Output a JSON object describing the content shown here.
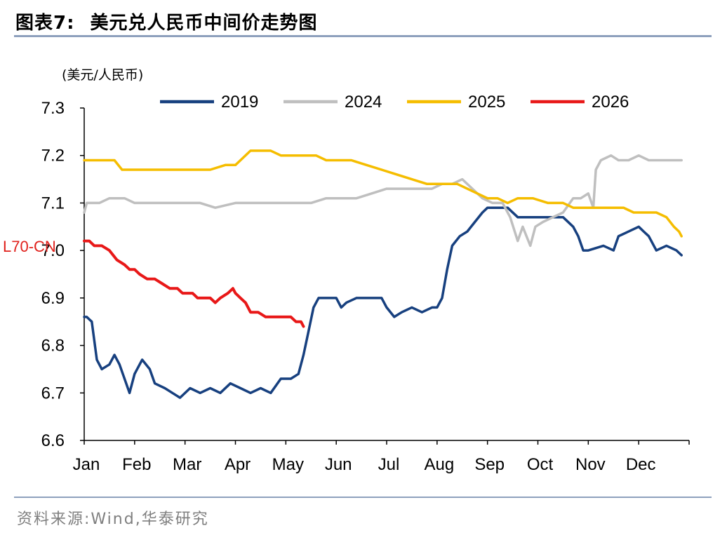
{
  "header": {
    "figure_label": "图表7:",
    "title": "美元兑人民币中间价走势图"
  },
  "footer": {
    "source": "资料来源:Wind,华泰研究"
  },
  "chart_data": {
    "type": "line",
    "unit_label": "(美元/人民币)",
    "annotation": "L70-CN",
    "ylim": [
      6.6,
      7.3
    ],
    "y_ticks": [
      "7.3",
      "7.2",
      "7.1",
      "7.0",
      "6.9",
      "6.8",
      "6.7",
      "6.6"
    ],
    "x_ticks": [
      "Jan",
      "Feb",
      "Mar",
      "Apr",
      "May",
      "Jun",
      "Jul",
      "Aug",
      "Sep",
      "Oct",
      "Nov",
      "Dec"
    ],
    "legend_position": "top",
    "series": [
      {
        "name": "2019",
        "color": "#17407f",
        "points": [
          [
            1.0,
            6.86
          ],
          [
            1.05,
            6.86
          ],
          [
            1.15,
            6.85
          ],
          [
            1.25,
            6.77
          ],
          [
            1.35,
            6.75
          ],
          [
            1.5,
            6.76
          ],
          [
            1.6,
            6.78
          ],
          [
            1.7,
            6.76
          ],
          [
            1.9,
            6.7
          ],
          [
            2.0,
            6.74
          ],
          [
            2.15,
            6.77
          ],
          [
            2.3,
            6.75
          ],
          [
            2.4,
            6.72
          ],
          [
            2.6,
            6.71
          ],
          [
            2.75,
            6.7
          ],
          [
            2.9,
            6.69
          ],
          [
            3.1,
            6.71
          ],
          [
            3.3,
            6.7
          ],
          [
            3.5,
            6.71
          ],
          [
            3.7,
            6.7
          ],
          [
            3.9,
            6.72
          ],
          [
            4.1,
            6.71
          ],
          [
            4.3,
            6.7
          ],
          [
            4.5,
            6.71
          ],
          [
            4.7,
            6.7
          ],
          [
            4.9,
            6.73
          ],
          [
            5.1,
            6.73
          ],
          [
            5.25,
            6.74
          ],
          [
            5.35,
            6.78
          ],
          [
            5.45,
            6.83
          ],
          [
            5.55,
            6.88
          ],
          [
            5.65,
            6.9
          ],
          [
            6.0,
            6.9
          ],
          [
            6.1,
            6.88
          ],
          [
            6.2,
            6.89
          ],
          [
            6.4,
            6.9
          ],
          [
            6.9,
            6.9
          ],
          [
            7.0,
            6.88
          ],
          [
            7.15,
            6.86
          ],
          [
            7.3,
            6.87
          ],
          [
            7.5,
            6.88
          ],
          [
            7.7,
            6.87
          ],
          [
            7.9,
            6.88
          ],
          [
            8.0,
            6.88
          ],
          [
            8.1,
            6.9
          ],
          [
            8.2,
            6.96
          ],
          [
            8.3,
            7.01
          ],
          [
            8.45,
            7.03
          ],
          [
            8.6,
            7.04
          ],
          [
            8.75,
            7.06
          ],
          [
            8.9,
            7.08
          ],
          [
            9.0,
            7.09
          ],
          [
            9.2,
            7.09
          ],
          [
            9.4,
            7.09
          ],
          [
            9.6,
            7.07
          ],
          [
            9.8,
            7.07
          ],
          [
            10.0,
            7.07
          ],
          [
            10.3,
            7.07
          ],
          [
            10.5,
            7.07
          ],
          [
            10.7,
            7.05
          ],
          [
            10.8,
            7.03
          ],
          [
            10.9,
            7.0
          ],
          [
            11.0,
            7.0
          ],
          [
            11.3,
            7.01
          ],
          [
            11.5,
            7.0
          ],
          [
            11.6,
            7.03
          ],
          [
            11.8,
            7.04
          ],
          [
            12.0,
            7.05
          ],
          [
            12.1,
            7.04
          ],
          [
            12.2,
            7.03
          ],
          [
            12.35,
            7.0
          ],
          [
            12.55,
            7.01
          ],
          [
            12.75,
            7.0
          ],
          [
            12.85,
            6.99
          ]
        ]
      },
      {
        "name": "2024",
        "color": "#bfbfbf",
        "points": [
          [
            1.0,
            7.08
          ],
          [
            1.05,
            7.1
          ],
          [
            1.3,
            7.1
          ],
          [
            1.5,
            7.11
          ],
          [
            1.8,
            7.11
          ],
          [
            2.0,
            7.1
          ],
          [
            2.3,
            7.1
          ],
          [
            2.7,
            7.1
          ],
          [
            3.0,
            7.1
          ],
          [
            3.3,
            7.1
          ],
          [
            3.6,
            7.09
          ],
          [
            4.0,
            7.1
          ],
          [
            4.3,
            7.1
          ],
          [
            4.6,
            7.1
          ],
          [
            4.9,
            7.1
          ],
          [
            5.1,
            7.1
          ],
          [
            5.5,
            7.1
          ],
          [
            5.8,
            7.11
          ],
          [
            6.1,
            7.11
          ],
          [
            6.4,
            7.11
          ],
          [
            6.7,
            7.12
          ],
          [
            7.0,
            7.13
          ],
          [
            7.3,
            7.13
          ],
          [
            7.6,
            7.13
          ],
          [
            7.9,
            7.13
          ],
          [
            8.1,
            7.14
          ],
          [
            8.3,
            7.14
          ],
          [
            8.5,
            7.15
          ],
          [
            8.7,
            7.13
          ],
          [
            8.9,
            7.11
          ],
          [
            9.1,
            7.1
          ],
          [
            9.3,
            7.1
          ],
          [
            9.45,
            7.07
          ],
          [
            9.6,
            7.02
          ],
          [
            9.7,
            7.05
          ],
          [
            9.85,
            7.01
          ],
          [
            9.95,
            7.05
          ],
          [
            10.1,
            7.06
          ],
          [
            10.3,
            7.07
          ],
          [
            10.5,
            7.08
          ],
          [
            10.7,
            7.11
          ],
          [
            10.85,
            7.11
          ],
          [
            11.0,
            7.12
          ],
          [
            11.1,
            7.09
          ],
          [
            11.15,
            7.17
          ],
          [
            11.25,
            7.19
          ],
          [
            11.45,
            7.2
          ],
          [
            11.6,
            7.19
          ],
          [
            11.8,
            7.19
          ],
          [
            12.0,
            7.2
          ],
          [
            12.2,
            7.19
          ],
          [
            12.4,
            7.19
          ],
          [
            12.6,
            7.19
          ],
          [
            12.85,
            7.19
          ]
        ]
      },
      {
        "name": "2025",
        "color": "#f5bd00",
        "points": [
          [
            1.0,
            7.19
          ],
          [
            1.3,
            7.19
          ],
          [
            1.6,
            7.19
          ],
          [
            1.75,
            7.17
          ],
          [
            2.0,
            7.17
          ],
          [
            2.3,
            7.17
          ],
          [
            2.6,
            7.17
          ],
          [
            2.9,
            7.17
          ],
          [
            3.2,
            7.17
          ],
          [
            3.5,
            7.17
          ],
          [
            3.8,
            7.18
          ],
          [
            4.0,
            7.18
          ],
          [
            4.1,
            7.19
          ],
          [
            4.3,
            7.21
          ],
          [
            4.5,
            7.21
          ],
          [
            4.7,
            7.21
          ],
          [
            4.9,
            7.2
          ],
          [
            5.1,
            7.2
          ],
          [
            5.4,
            7.2
          ],
          [
            5.6,
            7.2
          ],
          [
            5.8,
            7.19
          ],
          [
            6.0,
            7.19
          ],
          [
            6.3,
            7.19
          ],
          [
            6.6,
            7.18
          ],
          [
            6.9,
            7.17
          ],
          [
            7.2,
            7.16
          ],
          [
            7.5,
            7.15
          ],
          [
            7.8,
            7.14
          ],
          [
            8.1,
            7.14
          ],
          [
            8.4,
            7.14
          ],
          [
            8.6,
            7.13
          ],
          [
            8.8,
            7.12
          ],
          [
            9.0,
            7.11
          ],
          [
            9.2,
            7.11
          ],
          [
            9.4,
            7.1
          ],
          [
            9.6,
            7.11
          ],
          [
            9.9,
            7.11
          ],
          [
            10.2,
            7.1
          ],
          [
            10.5,
            7.1
          ],
          [
            10.7,
            7.09
          ],
          [
            10.9,
            7.09
          ],
          [
            11.1,
            7.09
          ],
          [
            11.3,
            7.09
          ],
          [
            11.5,
            7.09
          ],
          [
            11.7,
            7.09
          ],
          [
            11.9,
            7.08
          ],
          [
            12.1,
            7.08
          ],
          [
            12.35,
            7.08
          ],
          [
            12.55,
            7.07
          ],
          [
            12.7,
            7.05
          ],
          [
            12.8,
            7.04
          ],
          [
            12.85,
            7.03
          ]
        ]
      },
      {
        "name": "2026",
        "color": "#e81818",
        "points": [
          [
            1.0,
            7.02
          ],
          [
            1.1,
            7.02
          ],
          [
            1.2,
            7.01
          ],
          [
            1.35,
            7.01
          ],
          [
            1.5,
            7.0
          ],
          [
            1.65,
            6.98
          ],
          [
            1.8,
            6.97
          ],
          [
            1.9,
            6.96
          ],
          [
            2.0,
            6.96
          ],
          [
            2.1,
            6.95
          ],
          [
            2.25,
            6.94
          ],
          [
            2.4,
            6.94
          ],
          [
            2.55,
            6.93
          ],
          [
            2.7,
            6.92
          ],
          [
            2.85,
            6.92
          ],
          [
            2.95,
            6.91
          ],
          [
            3.05,
            6.91
          ],
          [
            3.15,
            6.91
          ],
          [
            3.25,
            6.9
          ],
          [
            3.4,
            6.9
          ],
          [
            3.5,
            6.9
          ],
          [
            3.6,
            6.89
          ],
          [
            3.7,
            6.9
          ],
          [
            3.85,
            6.91
          ],
          [
            3.95,
            6.92
          ],
          [
            4.0,
            6.91
          ],
          [
            4.1,
            6.9
          ],
          [
            4.2,
            6.89
          ],
          [
            4.3,
            6.87
          ],
          [
            4.45,
            6.87
          ],
          [
            4.6,
            6.86
          ],
          [
            4.75,
            6.86
          ],
          [
            4.9,
            6.86
          ],
          [
            5.0,
            6.86
          ],
          [
            5.1,
            6.86
          ],
          [
            5.2,
            6.85
          ],
          [
            5.3,
            6.85
          ],
          [
            5.35,
            6.84
          ]
        ]
      }
    ]
  }
}
